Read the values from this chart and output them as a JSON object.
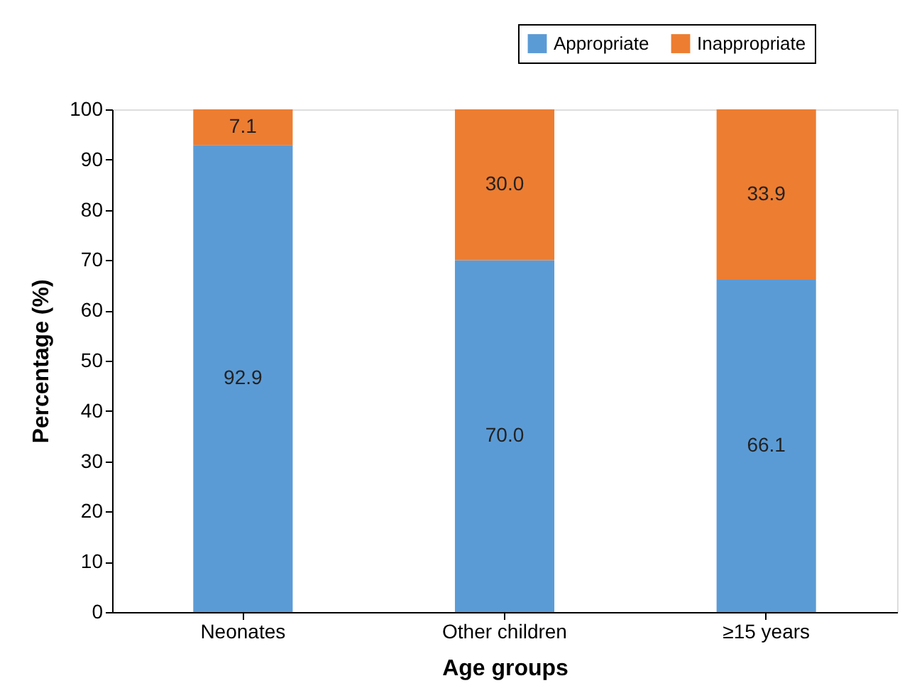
{
  "chart_data": {
    "type": "bar",
    "stacked": true,
    "xlabel": "Age groups",
    "ylabel": "Percentage (%)",
    "categories": [
      "Neonates",
      "Other children",
      "≥15 years"
    ],
    "series": [
      {
        "name": "Appropriate",
        "color": "#5b9bd5",
        "values": [
          92.9,
          70.0,
          66.1
        ],
        "value_labels": [
          "92.9",
          "70.0",
          "66.1"
        ]
      },
      {
        "name": "Inappropriate",
        "color": "#ed7d31",
        "values": [
          7.1,
          30.0,
          33.9
        ],
        "value_labels": [
          "7.1",
          "30.0",
          "33.9"
        ]
      }
    ],
    "ylim": [
      0,
      100
    ],
    "yticks": [
      0,
      10,
      20,
      30,
      40,
      50,
      60,
      70,
      80,
      90,
      100
    ],
    "grid": false,
    "legend": "top right"
  }
}
